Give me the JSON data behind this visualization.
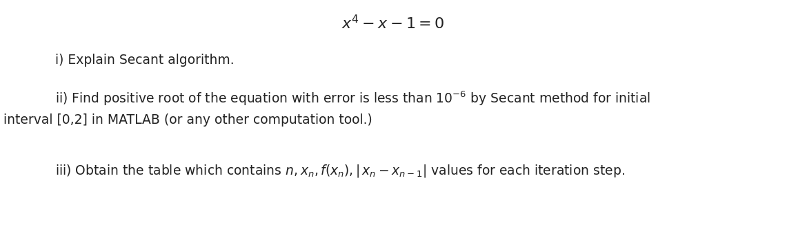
{
  "bg_color": "#ffffff",
  "title_math": "$x^{4} - x - 1 = 0$",
  "title_fontsize": 16,
  "line1_text": "i) Explain Secant algorithm.",
  "line1_fontsize": 13.5,
  "line2a_text": "ii) Find positive root of the equation with error is less than $10^{-6}$ by Secant method for initial",
  "line2a_fontsize": 13.5,
  "line2b_text": "interval [0,2] in MATLAB (or any other computation tool.)",
  "line2b_fontsize": 13.5,
  "line3_text": "iii) Obtain the table which contains $n, x_n, f(x_n), |\\,x_n - x_{n-1}|$ values for each iteration step.",
  "line3_fontsize": 13.5,
  "figwidth": 11.41,
  "figheight": 3.33,
  "dpi": 100
}
